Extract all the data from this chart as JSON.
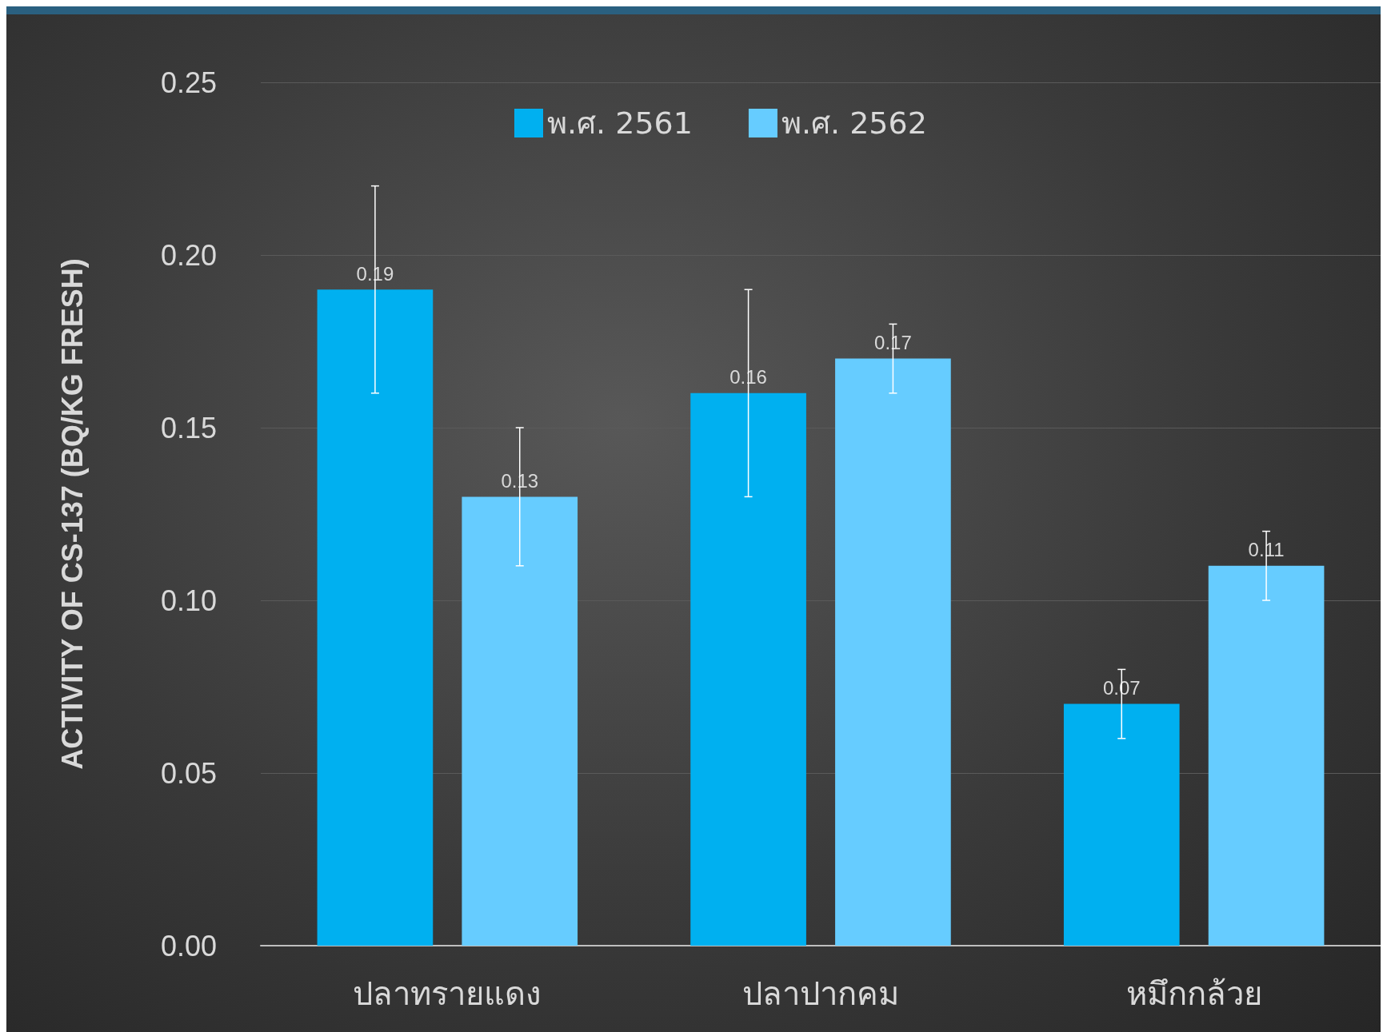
{
  "chart_data": {
    "type": "bar",
    "ylabel": "ACTIVITY OF CS-137 (BQ/KG FRESH)",
    "categories": [
      "ปลาทรายแดง",
      "ปลาปากคม",
      "หมึกกล้วย"
    ],
    "series": [
      {
        "name": "พ.ศ. 2561",
        "color": "#00b0f0",
        "values": [
          0.19,
          0.16,
          0.07
        ],
        "errors": [
          0.03,
          0.03,
          0.01
        ]
      },
      {
        "name": "พ.ศ. 2562",
        "color": "#66ccff",
        "values": [
          0.13,
          0.17,
          0.11
        ],
        "errors": [
          0.02,
          0.01,
          0.01
        ]
      }
    ],
    "ylim": [
      0,
      0.25
    ],
    "yticks": [
      {
        "value": 0,
        "label": "0.00"
      },
      0.05,
      {
        "value": 0.1,
        "label": "0.10"
      },
      0.15,
      {
        "value": 0.2,
        "label": "0.20"
      },
      0.25
    ],
    "grid": "y",
    "legend": "top",
    "data_labels": true
  }
}
